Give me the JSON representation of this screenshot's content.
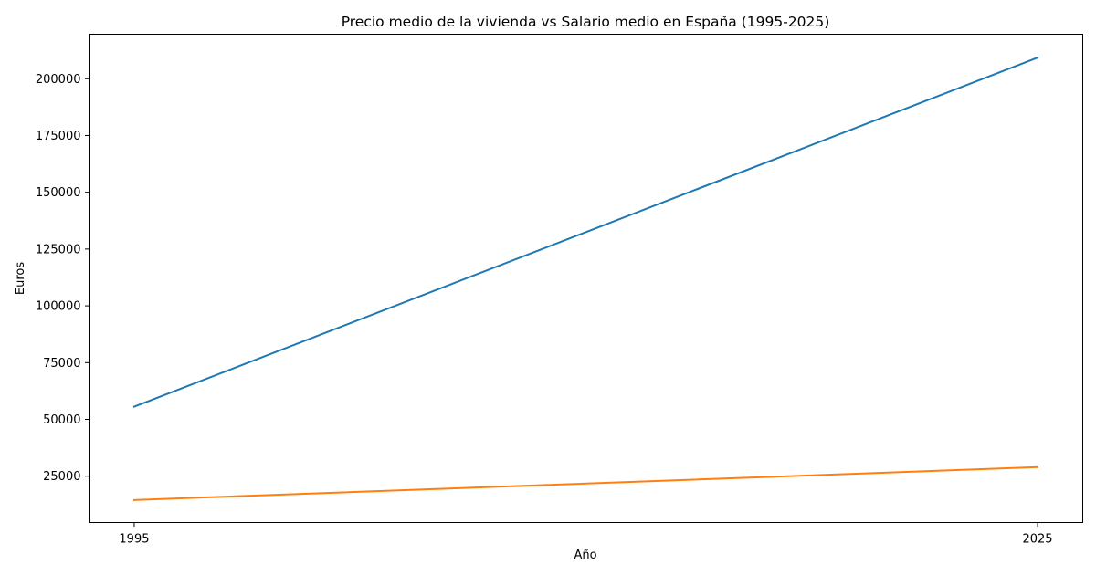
{
  "chart_data": {
    "type": "line",
    "title": "Precio medio de la vivienda vs Salario medio en España (1995-2025)",
    "xlabel": "Año",
    "ylabel": "Euros",
    "x": [
      1995,
      2025
    ],
    "x_ticks": [
      "1995",
      "2025"
    ],
    "y_ticks": [
      "25000",
      "50000",
      "75000",
      "100000",
      "125000",
      "150000",
      "175000",
      "200000"
    ],
    "xlim": [
      1993.5,
      2026.5
    ],
    "ylim": [
      4580,
      219600
    ],
    "grid": false,
    "legend": null,
    "series": [
      {
        "name": "Precio medio de la vivienda",
        "color": "#1f77b4",
        "values": [
          55600,
          209300
        ]
      },
      {
        "name": "Salario medio",
        "color": "#ff7f0e",
        "values": [
          14500,
          29000
        ]
      }
    ]
  }
}
